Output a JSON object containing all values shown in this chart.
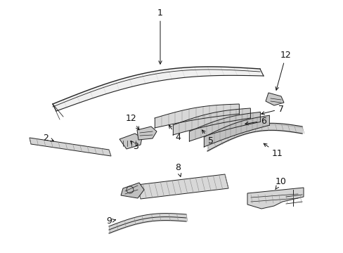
{
  "bg_color": "#ffffff",
  "line_color": "#222222",
  "hatch_color": "#888888",
  "fill_light": "#e0e0e0",
  "fill_mid": "#cccccc",
  "figsize": [
    4.89,
    3.6
  ],
  "dpi": 100
}
